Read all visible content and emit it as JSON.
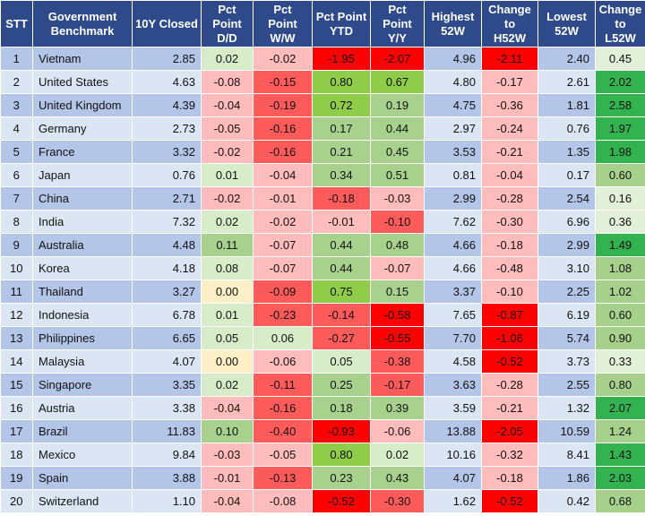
{
  "header": {
    "stt": "STT",
    "benchmark": [
      "Government",
      "Benchmark"
    ],
    "closed": "10Y Closed",
    "dd": [
      "Pct",
      "Point",
      "D/D"
    ],
    "ww": [
      "Pct",
      "Point",
      "W/W"
    ],
    "ytd": [
      "Pct Point",
      "YTD"
    ],
    "yy": [
      "Pct",
      "Point",
      "Y/Y"
    ],
    "h52": [
      "Highest",
      "52W"
    ],
    "ch52": [
      "Change",
      "to",
      "H52W"
    ],
    "l52": [
      "Lowest",
      "52W"
    ],
    "cl52": [
      "Change",
      "to",
      "L52W"
    ]
  },
  "colors": {
    "header_bg": "#2e4a8b",
    "row_odd": "#b4c6e7",
    "row_even": "#dce5f3",
    "strong_red": "#ff0000",
    "medium_red": "#ff5b5b",
    "light_red": "#ffbcbc",
    "neutral": "#fdf0c6",
    "light_green": "#d9ecca",
    "medium_green": "#a9d18e",
    "strong_green": "#8fcc4a",
    "l52_strong": "#33b34f",
    "l52_medium": "#a8d08d",
    "l52_light": "#e2efd9"
  },
  "rows": [
    {
      "stt": "1",
      "name": "Vietnam",
      "closed": "2.85",
      "dd": "0.02",
      "ww": "-0.02",
      "ytd": "-1.95",
      "yy": "-2.07",
      "h52": "4.96",
      "ch52": "-2.11",
      "l52": "2.40",
      "cl52": "0.45"
    },
    {
      "stt": "2",
      "name": "United States",
      "closed": "4.63",
      "dd": "-0.08",
      "ww": "-0.15",
      "ytd": "0.80",
      "yy": "0.67",
      "h52": "4.80",
      "ch52": "-0.17",
      "l52": "2.61",
      "cl52": "2.02"
    },
    {
      "stt": "3",
      "name": "United Kingdom",
      "closed": "4.39",
      "dd": "-0.04",
      "ww": "-0.19",
      "ytd": "0.72",
      "yy": "0.19",
      "h52": "4.75",
      "ch52": "-0.36",
      "l52": "1.81",
      "cl52": "2.58"
    },
    {
      "stt": "4",
      "name": "Germany",
      "closed": "2.73",
      "dd": "-0.05",
      "ww": "-0.16",
      "ytd": "0.17",
      "yy": "0.44",
      "h52": "2.97",
      "ch52": "-0.24",
      "l52": "0.76",
      "cl52": "1.97"
    },
    {
      "stt": "5",
      "name": "France",
      "closed": "3.32",
      "dd": "-0.02",
      "ww": "-0.16",
      "ytd": "0.21",
      "yy": "0.45",
      "h52": "3.53",
      "ch52": "-0.21",
      "l52": "1.35",
      "cl52": "1.98"
    },
    {
      "stt": "6",
      "name": "Japan",
      "closed": "0.76",
      "dd": "0.01",
      "ww": "-0.04",
      "ytd": "0.34",
      "yy": "0.51",
      "h52": "0.81",
      "ch52": "-0.04",
      "l52": "0.17",
      "cl52": "0.60"
    },
    {
      "stt": "7",
      "name": "China",
      "closed": "2.71",
      "dd": "-0.02",
      "ww": "-0.01",
      "ytd": "-0.18",
      "yy": "-0.03",
      "h52": "2.99",
      "ch52": "-0.28",
      "l52": "2.54",
      "cl52": "0.16"
    },
    {
      "stt": "8",
      "name": "India",
      "closed": "7.32",
      "dd": "0.02",
      "ww": "-0.02",
      "ytd": "-0.01",
      "yy": "-0.10",
      "h52": "7.62",
      "ch52": "-0.30",
      "l52": "6.96",
      "cl52": "0.36"
    },
    {
      "stt": "9",
      "name": "Australia",
      "closed": "4.48",
      "dd": "0.11",
      "ww": "-0.07",
      "ytd": "0.44",
      "yy": "0.48",
      "h52": "4.66",
      "ch52": "-0.18",
      "l52": "2.99",
      "cl52": "1.49"
    },
    {
      "stt": "10",
      "name": "Korea",
      "closed": "4.18",
      "dd": "0.08",
      "ww": "-0.07",
      "ytd": "0.44",
      "yy": "-0.07",
      "h52": "4.66",
      "ch52": "-0.48",
      "l52": "3.10",
      "cl52": "1.08"
    },
    {
      "stt": "11",
      "name": "Thailand",
      "closed": "3.27",
      "dd": "0.00",
      "ww": "-0.09",
      "ytd": "0.75",
      "yy": "0.15",
      "h52": "3.37",
      "ch52": "-0.10",
      "l52": "2.25",
      "cl52": "1.02"
    },
    {
      "stt": "12",
      "name": "Indonesia",
      "closed": "6.78",
      "dd": "0.01",
      "ww": "-0.23",
      "ytd": "-0.14",
      "yy": "-0.58",
      "h52": "7.65",
      "ch52": "-0.87",
      "l52": "6.19",
      "cl52": "0.60"
    },
    {
      "stt": "13",
      "name": "Philippines",
      "closed": "6.65",
      "dd": "0.05",
      "ww": "0.06",
      "ytd": "-0.27",
      "yy": "-0.55",
      "h52": "7.70",
      "ch52": "-1.06",
      "l52": "5.74",
      "cl52": "0.90"
    },
    {
      "stt": "14",
      "name": "Malaysia",
      "closed": "4.07",
      "dd": "0.00",
      "ww": "-0.06",
      "ytd": "0.05",
      "yy": "-0.38",
      "h52": "4.58",
      "ch52": "-0.52",
      "l52": "3.73",
      "cl52": "0.33"
    },
    {
      "stt": "15",
      "name": "Singapore",
      "closed": "3.35",
      "dd": "0.02",
      "ww": "-0.11",
      "ytd": "0.25",
      "yy": "-0.17",
      "h52": "3.63",
      "ch52": "-0.28",
      "l52": "2.55",
      "cl52": "0.80"
    },
    {
      "stt": "16",
      "name": "Austria",
      "closed": "3.38",
      "dd": "-0.04",
      "ww": "-0.16",
      "ytd": "0.18",
      "yy": "0.39",
      "h52": "3.59",
      "ch52": "-0.21",
      "l52": "1.32",
      "cl52": "2.07"
    },
    {
      "stt": "17",
      "name": "Brazil",
      "closed": "11.83",
      "dd": "0.10",
      "ww": "-0.40",
      "ytd": "-0.93",
      "yy": "-0.06",
      "h52": "13.88",
      "ch52": "-2.05",
      "l52": "10.59",
      "cl52": "1.24"
    },
    {
      "stt": "18",
      "name": "Mexico",
      "closed": "9.84",
      "dd": "-0.03",
      "ww": "-0.05",
      "ytd": "0.80",
      "yy": "0.02",
      "h52": "10.16",
      "ch52": "-0.32",
      "l52": "8.41",
      "cl52": "1.43"
    },
    {
      "stt": "19",
      "name": "Spain",
      "closed": "3.88",
      "dd": "-0.01",
      "ww": "-0.13",
      "ytd": "0.23",
      "yy": "0.43",
      "h52": "4.07",
      "ch52": "-0.18",
      "l52": "1.86",
      "cl52": "2.03"
    },
    {
      "stt": "20",
      "name": "Switzerland",
      "closed": "1.10",
      "dd": "-0.04",
      "ww": "-0.08",
      "ytd": "-0.52",
      "yy": "-0.30",
      "h52": "1.62",
      "ch52": "-0.52",
      "l52": "0.42",
      "cl52": "0.68"
    }
  ]
}
